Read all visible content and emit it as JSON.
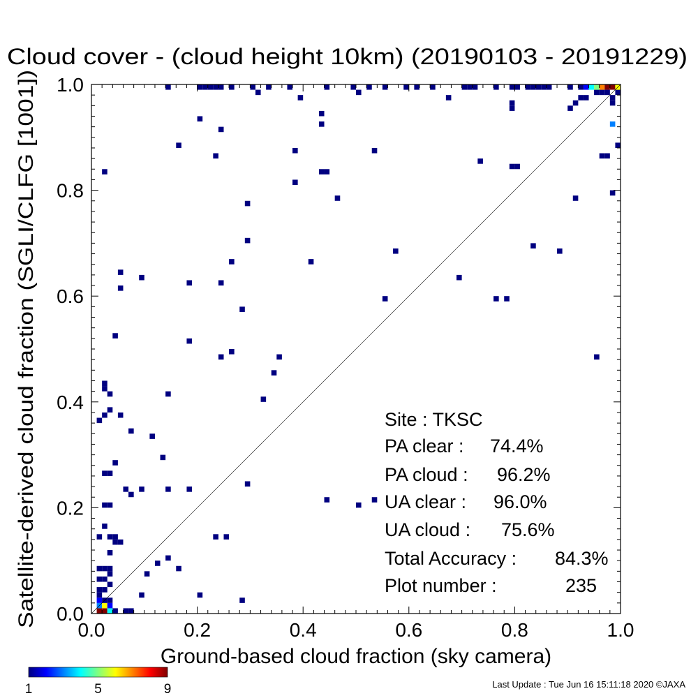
{
  "chart_data": {
    "type": "heatmap",
    "title": "Cloud cover - (cloud height 10km)  (20190103 - 20191229)",
    "xlabel": "Ground-based cloud fraction (sky camera)",
    "ylabel": "Satellite-derived cloud fraction (SGLI/CLFG [1001])",
    "xlim": [
      0.0,
      1.0
    ],
    "ylim": [
      0.0,
      1.0
    ],
    "x_ticks": [
      "0.0",
      "0.2",
      "0.4",
      "0.6",
      "0.8",
      "1.0"
    ],
    "y_ticks": [
      "0.0",
      "0.2",
      "0.4",
      "0.6",
      "0.8",
      "1.0"
    ],
    "x_tick_values": [
      0.0,
      0.2,
      0.4,
      0.6,
      0.8,
      1.0
    ],
    "y_tick_values": [
      0.0,
      0.2,
      0.4,
      0.6,
      0.8,
      1.0
    ],
    "diagonal_line": true,
    "bin_size": 0.01,
    "colorbar": {
      "min": 1,
      "max": 9,
      "labels": [
        "1",
        "5",
        "9"
      ],
      "colors": [
        "#000080",
        "#0000ff",
        "#0080ff",
        "#00ffff",
        "#80ff80",
        "#ffff00",
        "#ff8000",
        "#ff0000",
        "#800000"
      ]
    },
    "cells": [
      {
        "x": 0.01,
        "y": 0.0,
        "count": 9
      },
      {
        "x": 0.02,
        "y": 0.0,
        "count": 9
      },
      {
        "x": 0.03,
        "y": 0.0,
        "count": 4
      },
      {
        "x": 0.04,
        "y": 0.0,
        "count": 1
      },
      {
        "x": 0.06,
        "y": 0.0,
        "count": 1
      },
      {
        "x": 0.07,
        "y": 0.0,
        "count": 1
      },
      {
        "x": 0.01,
        "y": 0.01,
        "count": 3
      },
      {
        "x": 0.02,
        "y": 0.01,
        "count": 6
      },
      {
        "x": 0.03,
        "y": 0.01,
        "count": 2
      },
      {
        "x": 0.01,
        "y": 0.02,
        "count": 2
      },
      {
        "x": 0.02,
        "y": 0.02,
        "count": 1
      },
      {
        "x": 0.03,
        "y": 0.02,
        "count": 1
      },
      {
        "x": 0.01,
        "y": 0.03,
        "count": 1
      },
      {
        "x": 0.01,
        "y": 0.04,
        "count": 1
      },
      {
        "x": 0.02,
        "y": 0.04,
        "count": 1
      },
      {
        "x": 0.03,
        "y": 0.05,
        "count": 1
      },
      {
        "x": 0.01,
        "y": 0.06,
        "count": 1
      },
      {
        "x": 0.02,
        "y": 0.06,
        "count": 1
      },
      {
        "x": 0.03,
        "y": 0.07,
        "count": 1
      },
      {
        "x": 0.01,
        "y": 0.08,
        "count": 1
      },
      {
        "x": 0.02,
        "y": 0.08,
        "count": 1
      },
      {
        "x": 0.03,
        "y": 0.08,
        "count": 1
      },
      {
        "x": 0.03,
        "y": 0.11,
        "count": 1
      },
      {
        "x": 0.04,
        "y": 0.13,
        "count": 1
      },
      {
        "x": 0.05,
        "y": 0.13,
        "count": 1
      },
      {
        "x": 0.01,
        "y": 0.14,
        "count": 1
      },
      {
        "x": 0.03,
        "y": 0.14,
        "count": 1
      },
      {
        "x": 0.04,
        "y": 0.14,
        "count": 1
      },
      {
        "x": 0.02,
        "y": 0.16,
        "count": 1
      },
      {
        "x": 0.02,
        "y": 0.2,
        "count": 1
      },
      {
        "x": 0.03,
        "y": 0.2,
        "count": 1
      },
      {
        "x": 0.02,
        "y": 0.26,
        "count": 1
      },
      {
        "x": 0.03,
        "y": 0.26,
        "count": 1
      },
      {
        "x": 0.04,
        "y": 0.28,
        "count": 1
      },
      {
        "x": 0.01,
        "y": 0.36,
        "count": 1
      },
      {
        "x": 0.02,
        "y": 0.37,
        "count": 1
      },
      {
        "x": 0.03,
        "y": 0.38,
        "count": 1
      },
      {
        "x": 0.02,
        "y": 0.42,
        "count": 1
      },
      {
        "x": 0.02,
        "y": 0.43,
        "count": 1
      },
      {
        "x": 0.03,
        "y": 0.41,
        "count": 1
      },
      {
        "x": 0.04,
        "y": 0.52,
        "count": 1
      },
      {
        "x": 0.05,
        "y": 0.61,
        "count": 1
      },
      {
        "x": 0.05,
        "y": 0.64,
        "count": 1
      },
      {
        "x": 0.02,
        "y": 0.83,
        "count": 1
      },
      {
        "x": 0.05,
        "y": 0.37,
        "count": 1
      },
      {
        "x": 0.07,
        "y": 0.34,
        "count": 1
      },
      {
        "x": 0.06,
        "y": 0.23,
        "count": 1
      },
      {
        "x": 0.07,
        "y": 0.22,
        "count": 1
      },
      {
        "x": 0.09,
        "y": 0.23,
        "count": 1
      },
      {
        "x": 0.09,
        "y": 0.03,
        "count": 1
      },
      {
        "x": 0.1,
        "y": 0.07,
        "count": 1
      },
      {
        "x": 0.11,
        "y": 0.33,
        "count": 1
      },
      {
        "x": 0.12,
        "y": 0.09,
        "count": 1
      },
      {
        "x": 0.13,
        "y": 0.29,
        "count": 1
      },
      {
        "x": 0.14,
        "y": 0.1,
        "count": 1
      },
      {
        "x": 0.14,
        "y": 0.23,
        "count": 1
      },
      {
        "x": 0.14,
        "y": 0.41,
        "count": 1
      },
      {
        "x": 0.16,
        "y": 0.08,
        "count": 1
      },
      {
        "x": 0.18,
        "y": 0.23,
        "count": 1
      },
      {
        "x": 0.18,
        "y": 0.51,
        "count": 1
      },
      {
        "x": 0.18,
        "y": 0.62,
        "count": 1
      },
      {
        "x": 0.09,
        "y": 0.63,
        "count": 1
      },
      {
        "x": 0.2,
        "y": 0.03,
        "count": 1
      },
      {
        "x": 0.16,
        "y": 0.88,
        "count": 1
      },
      {
        "x": 0.2,
        "y": 0.93,
        "count": 1
      },
      {
        "x": 0.23,
        "y": 0.14,
        "count": 1
      },
      {
        "x": 0.25,
        "y": 0.14,
        "count": 1
      },
      {
        "x": 0.24,
        "y": 0.48,
        "count": 1
      },
      {
        "x": 0.26,
        "y": 0.49,
        "count": 1
      },
      {
        "x": 0.24,
        "y": 0.62,
        "count": 1
      },
      {
        "x": 0.26,
        "y": 0.66,
        "count": 1
      },
      {
        "x": 0.23,
        "y": 0.86,
        "count": 1
      },
      {
        "x": 0.24,
        "y": 0.91,
        "count": 1
      },
      {
        "x": 0.28,
        "y": 0.02,
        "count": 1
      },
      {
        "x": 0.29,
        "y": 0.24,
        "count": 1
      },
      {
        "x": 0.28,
        "y": 0.57,
        "count": 1
      },
      {
        "x": 0.29,
        "y": 0.7,
        "count": 1
      },
      {
        "x": 0.29,
        "y": 0.77,
        "count": 1
      },
      {
        "x": 0.31,
        "y": 0.98,
        "count": 1
      },
      {
        "x": 0.32,
        "y": 0.4,
        "count": 1
      },
      {
        "x": 0.34,
        "y": 0.45,
        "count": 1
      },
      {
        "x": 0.35,
        "y": 0.48,
        "count": 1
      },
      {
        "x": 0.38,
        "y": 0.81,
        "count": 1
      },
      {
        "x": 0.38,
        "y": 0.87,
        "count": 1
      },
      {
        "x": 0.39,
        "y": 0.97,
        "count": 1
      },
      {
        "x": 0.41,
        "y": 0.66,
        "count": 1
      },
      {
        "x": 0.43,
        "y": 0.83,
        "count": 1
      },
      {
        "x": 0.44,
        "y": 0.83,
        "count": 1
      },
      {
        "x": 0.43,
        "y": 0.92,
        "count": 1
      },
      {
        "x": 0.43,
        "y": 0.94,
        "count": 1
      },
      {
        "x": 0.44,
        "y": 0.21,
        "count": 1
      },
      {
        "x": 0.46,
        "y": 0.78,
        "count": 1
      },
      {
        "x": 0.5,
        "y": 0.2,
        "count": 1
      },
      {
        "x": 0.5,
        "y": 0.98,
        "count": 1
      },
      {
        "x": 0.53,
        "y": 0.21,
        "count": 1
      },
      {
        "x": 0.53,
        "y": 0.87,
        "count": 1
      },
      {
        "x": 0.55,
        "y": 0.59,
        "count": 1
      },
      {
        "x": 0.57,
        "y": 0.68,
        "count": 1
      },
      {
        "x": 0.67,
        "y": 0.97,
        "count": 1
      },
      {
        "x": 0.69,
        "y": 0.63,
        "count": 1
      },
      {
        "x": 0.73,
        "y": 0.85,
        "count": 1
      },
      {
        "x": 0.76,
        "y": 0.59,
        "count": 1
      },
      {
        "x": 0.78,
        "y": 0.59,
        "count": 1
      },
      {
        "x": 0.79,
        "y": 0.84,
        "count": 1
      },
      {
        "x": 0.8,
        "y": 0.84,
        "count": 1
      },
      {
        "x": 0.79,
        "y": 0.95,
        "count": 1
      },
      {
        "x": 0.79,
        "y": 0.96,
        "count": 1
      },
      {
        "x": 0.83,
        "y": 0.69,
        "count": 1
      },
      {
        "x": 0.88,
        "y": 0.68,
        "count": 1
      },
      {
        "x": 0.91,
        "y": 0.78,
        "count": 1
      },
      {
        "x": 0.9,
        "y": 0.95,
        "count": 1
      },
      {
        "x": 0.91,
        "y": 0.96,
        "count": 1
      },
      {
        "x": 0.92,
        "y": 0.97,
        "count": 1
      },
      {
        "x": 0.93,
        "y": 0.97,
        "count": 1
      },
      {
        "x": 0.95,
        "y": 0.48,
        "count": 1
      },
      {
        "x": 0.96,
        "y": 0.86,
        "count": 1
      },
      {
        "x": 0.97,
        "y": 0.86,
        "count": 1
      },
      {
        "x": 0.98,
        "y": 0.79,
        "count": 1
      },
      {
        "x": 0.99,
        "y": 0.88,
        "count": 1
      },
      {
        "x": 0.98,
        "y": 0.92,
        "count": 3
      },
      {
        "x": 0.98,
        "y": 0.96,
        "count": 1
      },
      {
        "x": 0.98,
        "y": 0.97,
        "count": 1
      },
      {
        "x": 0.99,
        "y": 0.98,
        "count": 1
      },
      {
        "x": 0.95,
        "y": 0.98,
        "count": 1
      },
      {
        "x": 0.96,
        "y": 0.98,
        "count": 1
      },
      {
        "x": 0.97,
        "y": 0.98,
        "count": 1
      },
      {
        "x": 0.9,
        "y": 0.99,
        "count": 1
      },
      {
        "x": 0.92,
        "y": 0.99,
        "count": 1
      },
      {
        "x": 0.93,
        "y": 0.99,
        "count": 2
      },
      {
        "x": 0.94,
        "y": 0.99,
        "count": 4
      },
      {
        "x": 0.95,
        "y": 0.99,
        "count": 5
      },
      {
        "x": 0.96,
        "y": 0.99,
        "count": 7
      },
      {
        "x": 0.97,
        "y": 0.99,
        "count": 9
      },
      {
        "x": 0.98,
        "y": 0.99,
        "count": 9
      },
      {
        "x": 0.99,
        "y": 0.99,
        "count": 6
      },
      {
        "x": 0.14,
        "y": 0.99,
        "count": 1
      },
      {
        "x": 0.2,
        "y": 0.99,
        "count": 1
      },
      {
        "x": 0.21,
        "y": 0.99,
        "count": 1
      },
      {
        "x": 0.22,
        "y": 0.99,
        "count": 1
      },
      {
        "x": 0.23,
        "y": 0.99,
        "count": 1
      },
      {
        "x": 0.24,
        "y": 0.99,
        "count": 1
      },
      {
        "x": 0.26,
        "y": 0.99,
        "count": 1
      },
      {
        "x": 0.3,
        "y": 0.99,
        "count": 1
      },
      {
        "x": 0.33,
        "y": 0.99,
        "count": 1
      },
      {
        "x": 0.37,
        "y": 0.99,
        "count": 1
      },
      {
        "x": 0.44,
        "y": 0.99,
        "count": 1
      },
      {
        "x": 0.49,
        "y": 0.99,
        "count": 1
      },
      {
        "x": 0.52,
        "y": 0.99,
        "count": 1
      },
      {
        "x": 0.55,
        "y": 0.99,
        "count": 1
      },
      {
        "x": 0.59,
        "y": 0.99,
        "count": 1
      },
      {
        "x": 0.61,
        "y": 0.99,
        "count": 1
      },
      {
        "x": 0.64,
        "y": 0.99,
        "count": 1
      },
      {
        "x": 0.7,
        "y": 0.99,
        "count": 1
      },
      {
        "x": 0.71,
        "y": 0.99,
        "count": 1
      },
      {
        "x": 0.72,
        "y": 0.99,
        "count": 1
      },
      {
        "x": 0.76,
        "y": 0.99,
        "count": 1
      },
      {
        "x": 0.79,
        "y": 0.99,
        "count": 1
      },
      {
        "x": 0.8,
        "y": 0.99,
        "count": 1
      },
      {
        "x": 0.82,
        "y": 0.99,
        "count": 1
      },
      {
        "x": 0.83,
        "y": 0.99,
        "count": 1
      },
      {
        "x": 0.84,
        "y": 0.99,
        "count": 1
      },
      {
        "x": 0.85,
        "y": 0.99,
        "count": 1
      },
      {
        "x": 0.86,
        "y": 0.99,
        "count": 1
      }
    ]
  },
  "stats": {
    "site_label": "Site : TKSC",
    "pa_clear_label": "PA clear :",
    "pa_clear_value": "74.4%",
    "pa_cloud_label": "PA cloud :",
    "pa_cloud_value": "96.2%",
    "ua_clear_label": "UA clear :",
    "ua_clear_value": "96.0%",
    "ua_cloud_label": "UA cloud :",
    "ua_cloud_value": "75.6%",
    "total_label": "Total Accuracy :",
    "total_value": "84.3%",
    "plot_label": "Plot number :",
    "plot_value": "235"
  },
  "footer": {
    "last_update": "Last Update : Tue Jun 16 15:11:18 2020  ©JAXA"
  }
}
